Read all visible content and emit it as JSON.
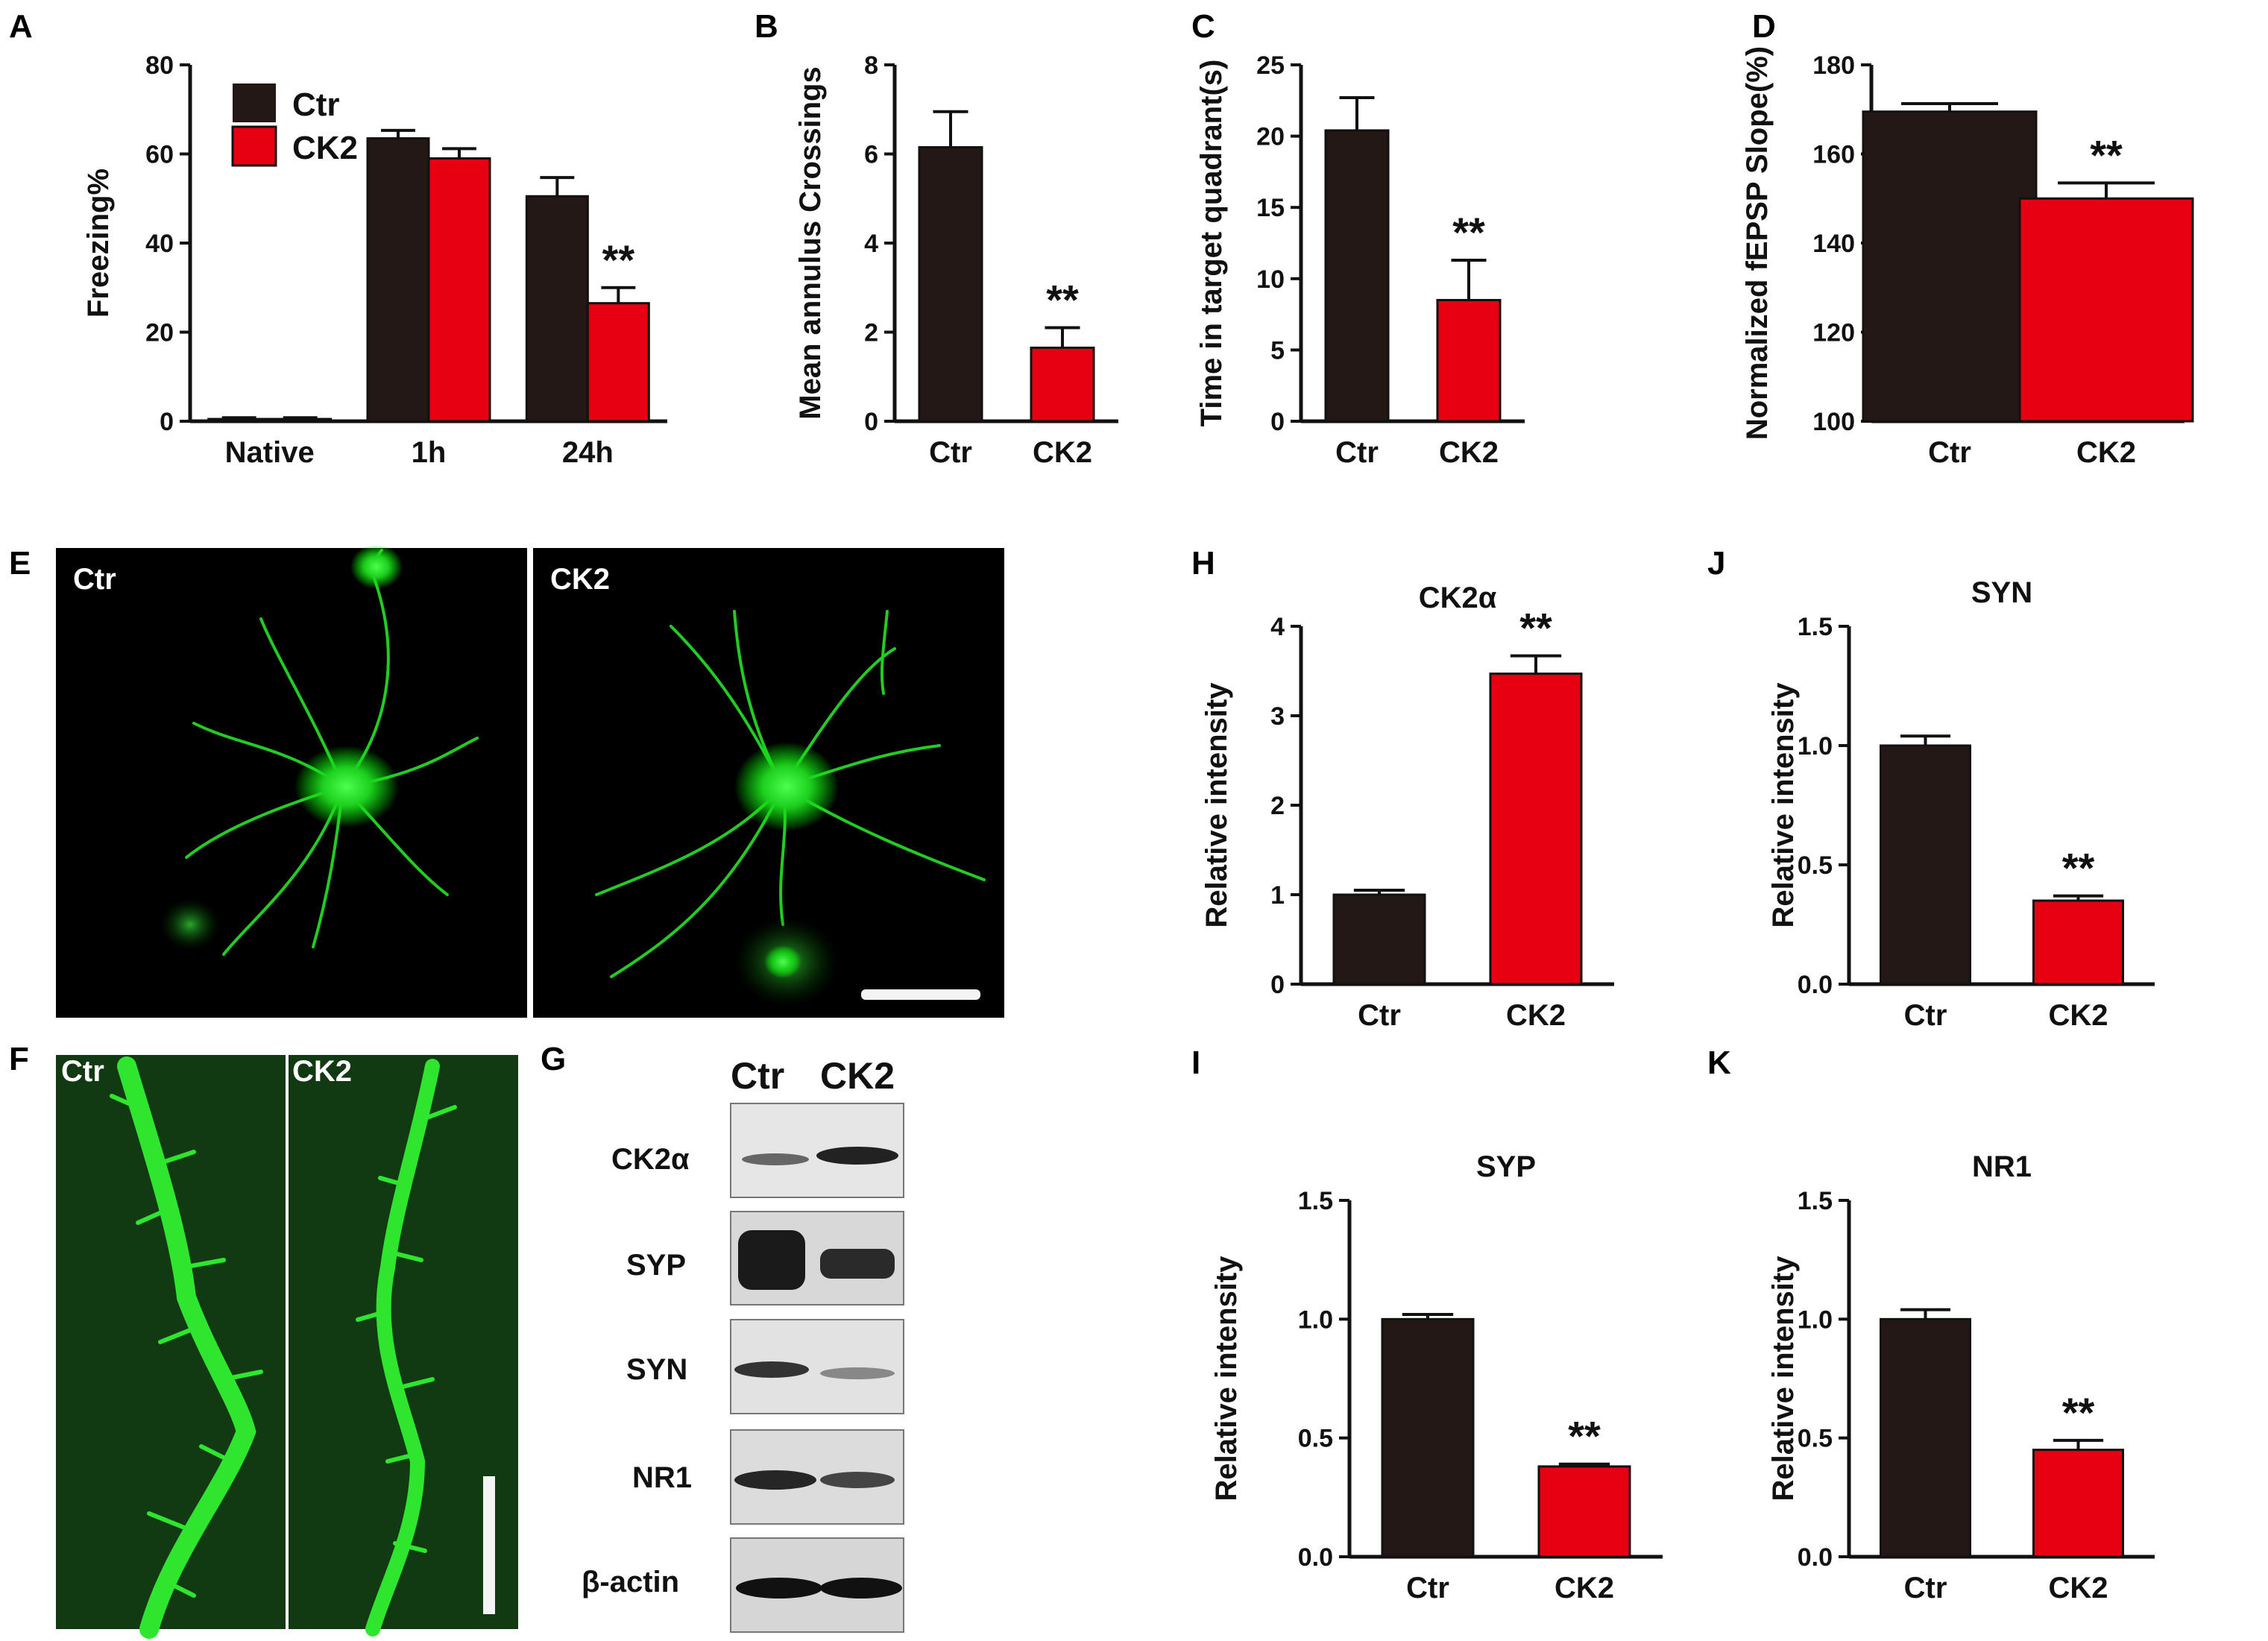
{
  "colors": {
    "ctr": "#231815",
    "ck2": "#e60012",
    "axis": "#111111"
  },
  "panel_letters": {
    "A": "A",
    "B": "B",
    "C": "C",
    "D": "D",
    "E": "E",
    "F": "F",
    "G": "G",
    "H": "H",
    "I": "I",
    "J": "J",
    "K": "K"
  },
  "legend": {
    "ctr": "Ctr",
    "ck2": "CK2"
  },
  "micrographs": {
    "E_left": "Ctr",
    "E_right": "CK2",
    "F_left": "Ctr",
    "F_right": "CK2"
  },
  "western_blot": {
    "columns": [
      "Ctr",
      "CK2"
    ],
    "bands": [
      "CK2α",
      "SYP",
      "SYN",
      "NR1",
      "β-actin"
    ]
  },
  "chart_data": [
    {
      "id": "A",
      "type": "bar",
      "categories": [
        "Native",
        "1h",
        "24h"
      ],
      "series": [
        {
          "name": "Ctr",
          "values": [
            0.5,
            63.5,
            50.5
          ],
          "errors": [
            0.3,
            1.8,
            4.2
          ]
        },
        {
          "name": "CK2",
          "values": [
            0.5,
            59,
            26.5
          ],
          "errors": [
            0.3,
            2.2,
            3.5
          ]
        }
      ],
      "ylabel": "Freezing%",
      "ylim": [
        0,
        80
      ],
      "yticks": [
        0,
        20,
        40,
        60,
        80
      ],
      "annotations": [
        {
          "category": "24h",
          "series": "CK2",
          "text": "**"
        }
      ]
    },
    {
      "id": "B",
      "type": "bar",
      "categories": [
        "Ctr",
        "CK2"
      ],
      "values": [
        6.15,
        1.65
      ],
      "errors": [
        0.8,
        0.45
      ],
      "ylabel": "Mean annulus Crossings",
      "ylim": [
        0,
        8
      ],
      "yticks": [
        0,
        2,
        4,
        6,
        8
      ],
      "annotations": [
        {
          "category": "CK2",
          "text": "**"
        }
      ]
    },
    {
      "id": "C",
      "type": "bar",
      "categories": [
        "Ctr",
        "CK2"
      ],
      "values": [
        20.4,
        8.5
      ],
      "errors": [
        2.3,
        2.8
      ],
      "ylabel": "Time in target quadrant(s)",
      "ylim": [
        0,
        25
      ],
      "yticks": [
        0,
        5,
        10,
        15,
        20,
        25
      ],
      "annotations": [
        {
          "category": "CK2",
          "text": "**"
        }
      ]
    },
    {
      "id": "D",
      "type": "bar",
      "categories": [
        "Ctr",
        "CK2"
      ],
      "values": [
        169.5,
        150
      ],
      "errors": [
        1.8,
        3.5
      ],
      "ylabel": "Normalized fEPSP Slope(%)",
      "ylim": [
        100,
        180
      ],
      "yticks": [
        100,
        120,
        140,
        160,
        180
      ],
      "annotations": [
        {
          "category": "CK2",
          "text": "**"
        }
      ]
    },
    {
      "id": "H",
      "type": "bar",
      "categories": [
        "Ctr",
        "CK2"
      ],
      "values": [
        1.0,
        3.47
      ],
      "errors": [
        0.05,
        0.2
      ],
      "title": "CK2α",
      "ylabel": "Relative intensity",
      "ylim": [
        0,
        4
      ],
      "yticks": [
        0,
        1,
        2,
        3,
        4
      ],
      "annotations": [
        {
          "category": "CK2",
          "text": "**"
        }
      ]
    },
    {
      "id": "J",
      "type": "bar",
      "categories": [
        "Ctr",
        "CK2"
      ],
      "values": [
        1.0,
        0.35
      ],
      "errors": [
        0.04,
        0.02
      ],
      "title": "SYN",
      "ylabel": "Relative intensity",
      "ylim": [
        0,
        1.5
      ],
      "yticks": [
        "0.0",
        "0.5",
        "1.0",
        "1.5"
      ],
      "annotations": [
        {
          "category": "CK2",
          "text": "**"
        }
      ]
    },
    {
      "id": "I",
      "type": "bar",
      "categories": [
        "Ctr",
        "CK2"
      ],
      "values": [
        1.0,
        0.38
      ],
      "errors": [
        0.02,
        0.01
      ],
      "title": "SYP",
      "ylabel": "Relative intensity",
      "ylim": [
        0,
        1.5
      ],
      "yticks": [
        "0.0",
        "0.5",
        "1.0",
        "1.5"
      ],
      "annotations": [
        {
          "category": "CK2",
          "text": "**"
        }
      ]
    },
    {
      "id": "K",
      "type": "bar",
      "categories": [
        "Ctr",
        "CK2"
      ],
      "values": [
        1.0,
        0.45
      ],
      "errors": [
        0.04,
        0.04
      ],
      "title": "NR1",
      "ylabel": "Relative intensity",
      "ylim": [
        0,
        1.5
      ],
      "yticks": [
        "0.0",
        "0.5",
        "1.0",
        "1.5"
      ],
      "annotations": [
        {
          "category": "CK2",
          "text": "**"
        }
      ]
    }
  ]
}
